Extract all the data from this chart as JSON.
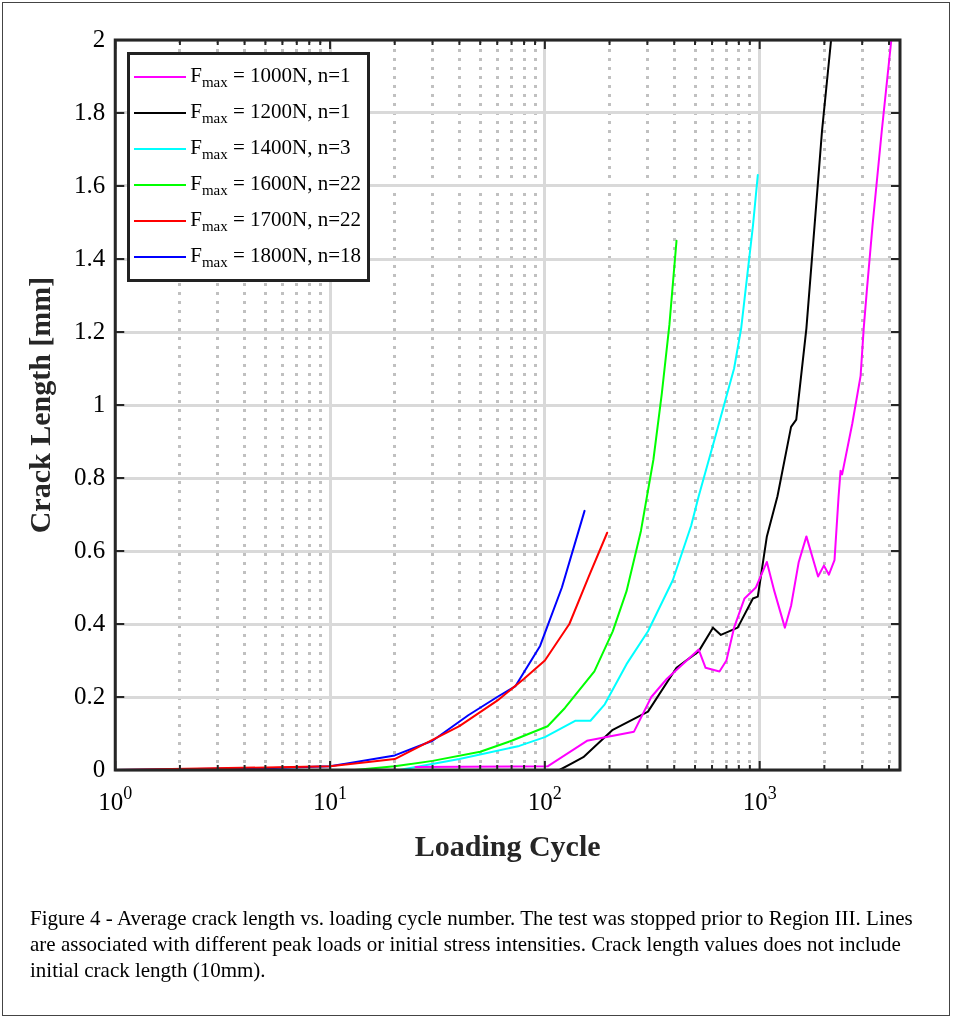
{
  "chart_data": {
    "type": "line",
    "xlabel": "Loading Cycle",
    "ylabel": "Crack Length [mm]",
    "log": "x",
    "xlim": [
      1,
      4500
    ],
    "ylim": [
      0,
      2
    ],
    "xticks": [
      {
        "value": 1,
        "label": "10$^{0}$"
      },
      {
        "value": 2,
        "label": null
      },
      {
        "value": 3,
        "label": null
      },
      {
        "value": 4,
        "label": null
      },
      {
        "value": 5,
        "label": null
      },
      {
        "value": 6,
        "label": null
      },
      {
        "value": 7,
        "label": null
      },
      {
        "value": 8,
        "label": null
      },
      {
        "value": 9,
        "label": null
      },
      {
        "value": 10,
        "label": "10$^{1}$"
      },
      {
        "value": 20,
        "label": null
      },
      {
        "value": 30,
        "label": null
      },
      {
        "value": 40,
        "label": null
      },
      {
        "value": 50,
        "label": null
      },
      {
        "value": 60,
        "label": null
      },
      {
        "value": 70,
        "label": null
      },
      {
        "value": 80,
        "label": null
      },
      {
        "value": 90,
        "label": null
      },
      {
        "value": 100,
        "label": "10$^{2}$"
      },
      {
        "value": 200,
        "label": null
      },
      {
        "value": 300,
        "label": null
      },
      {
        "value": 400,
        "label": null
      },
      {
        "value": 500,
        "label": null
      },
      {
        "value": 600,
        "label": null
      },
      {
        "value": 700,
        "label": null
      },
      {
        "value": 800,
        "label": null
      },
      {
        "value": 900,
        "label": null
      },
      {
        "value": 1000,
        "label": "10$^{3}$"
      },
      {
        "value": 2000,
        "label": null
      },
      {
        "value": 3000,
        "label": null
      },
      {
        "value": 4000,
        "label": null
      }
    ],
    "yticks": [
      0,
      0.2,
      0.4,
      0.6,
      0.8,
      1,
      1.2,
      1.4,
      1.6,
      1.8,
      2
    ],
    "grid": true,
    "legend": "top left",
    "marker": "none",
    "line_style": "solid",
    "series": [
      {
        "name": "F$_{max}$ = 1000N, n=1",
        "color": "#ff00ff",
        "x": [
          25,
          103,
          157,
          260,
          313,
          370,
          520,
          560,
          650,
          700,
          760,
          850,
          960,
          1080,
          1170,
          1310,
          1400,
          1520,
          1650,
          1870,
          1990,
          2100,
          2230,
          2330,
          2380,
          2420,
          2700,
          2950,
          3050,
          3150,
          3350,
          3700,
          4100
        ],
        "values": [
          0.008,
          0.01,
          0.08,
          0.105,
          0.2,
          0.25,
          0.33,
          0.28,
          0.27,
          0.3,
          0.39,
          0.47,
          0.5,
          0.57,
          0.49,
          0.39,
          0.45,
          0.57,
          0.64,
          0.53,
          0.56,
          0.535,
          0.575,
          0.75,
          0.82,
          0.81,
          0.95,
          1.08,
          1.21,
          1.31,
          1.49,
          1.75,
          2
        ]
      },
      {
        "name": "F$_{max}$ = 1200N, n=1",
        "color": "#000000",
        "x": [
          117,
          151,
          207,
          302,
          410,
          520,
          606,
          660,
          790,
          930,
          980,
          1080,
          1210,
          1400,
          1480,
          1650,
          1800,
          1950,
          2150
        ],
        "values": [
          0,
          0.035,
          0.11,
          0.16,
          0.28,
          0.325,
          0.39,
          0.37,
          0.39,
          0.47,
          0.475,
          0.64,
          0.75,
          0.94,
          0.96,
          1.21,
          1.49,
          1.75,
          2
        ]
      },
      {
        "name": "F$_{max}$ = 1400N, n=3",
        "color": "#00ffff",
        "x": [
          21,
          40,
          76,
          100,
          139,
          163,
          190,
          240,
          302,
          394,
          480,
          520,
          626,
          760,
          820,
          930,
          980
        ],
        "values": [
          0,
          0.03,
          0.066,
          0.09,
          0.135,
          0.135,
          0.18,
          0.29,
          0.38,
          0.52,
          0.67,
          0.75,
          0.92,
          1.1,
          1.21,
          1.49,
          1.63
        ]
      },
      {
        "name": "F$_{max}$ = 1600N, n=22",
        "color": "#00ff00",
        "x": [
          13,
          20,
          30,
          50,
          70,
          103,
          124,
          170,
          207,
          240,
          280,
          320,
          350,
          380,
          410
        ],
        "values": [
          0,
          0.01,
          0.025,
          0.05,
          0.08,
          0.12,
          0.17,
          0.27,
          0.38,
          0.49,
          0.655,
          0.85,
          1.03,
          1.22,
          1.45
        ]
      },
      {
        "name": "F$_{max}$ = 1700N, n=22",
        "color": "#ff0000",
        "x": [
          1,
          10,
          20,
          40,
          60,
          80,
          100,
          130,
          160,
          195
        ],
        "values": [
          0,
          0.01,
          0.03,
          0.12,
          0.19,
          0.25,
          0.3,
          0.4,
          0.53,
          0.65
        ]
      },
      {
        "name": "F$_{max}$ = 1800N, n=18",
        "color": "#0000ff",
        "x": [
          1,
          5,
          10,
          20,
          30,
          44,
          60,
          73,
          95,
          120,
          153
        ],
        "values": [
          0,
          0.005,
          0.01,
          0.04,
          0.08,
          0.15,
          0.2,
          0.23,
          0.34,
          0.5,
          0.71
        ]
      }
    ],
    "annotations": [
      "Figure 4 - Average crack length vs. loading cycle number. The test was stopped prior to Region III. Lines are associated with different peak loads or initial stress intensities. Crack length values does not include initial crack length (10mm)."
    ]
  }
}
